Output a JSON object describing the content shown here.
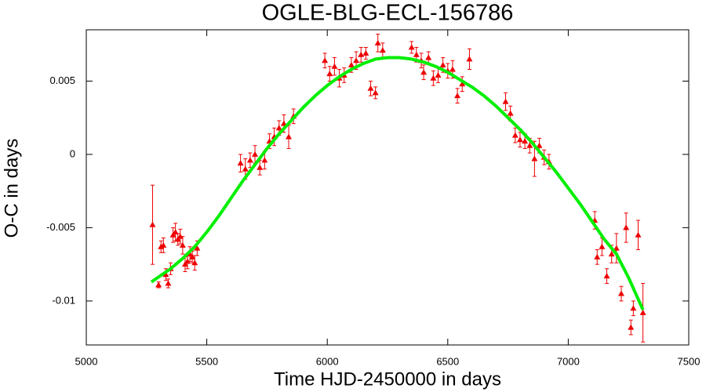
{
  "chart_data": {
    "type": "scatter",
    "title": "OGLE-BLG-ECL-156786",
    "x_label": "Time HJD-2450000 in days",
    "y_label": "O-C in days",
    "xlim": [
      5000,
      7500
    ],
    "ylim": [
      -0.013,
      0.0085
    ],
    "xticks": [
      5000,
      5500,
      6000,
      6500,
      7000,
      7500
    ],
    "yticks": [
      -0.01,
      -0.005,
      0,
      0.005
    ],
    "color": "#ee0000",
    "x": [
      5275,
      5300,
      5310,
      5320,
      5330,
      5340,
      5350,
      5360,
      5370,
      5380,
      5390,
      5400,
      5410,
      5420,
      5430,
      5440,
      5450,
      5460,
      5640,
      5660,
      5680,
      5700,
      5720,
      5740,
      5760,
      5780,
      5800,
      5820,
      5840,
      5860,
      5990,
      6010,
      6030,
      6050,
      6070,
      6100,
      6120,
      6140,
      6160,
      6180,
      6200,
      6210,
      6230,
      6350,
      6370,
      6390,
      6400,
      6420,
      6440,
      6460,
      6480,
      6500,
      6520,
      6540,
      6560,
      6590,
      6740,
      6760,
      6780,
      6800,
      6820,
      6840,
      6860,
      6880,
      6900,
      6920,
      7110,
      7120,
      7140,
      7160,
      7180,
      7200,
      7220,
      7240,
      7260,
      7270,
      7290,
      7310
    ],
    "values": [
      -0.0048,
      -0.0089,
      -0.0063,
      -0.0062,
      -0.0082,
      -0.0088,
      -0.0078,
      -0.0055,
      -0.0053,
      -0.0058,
      -0.0056,
      -0.0062,
      -0.0075,
      -0.0073,
      -0.0068,
      -0.007,
      -0.0074,
      -0.0064,
      -0.0006,
      -0.001,
      -0.0004,
      0.0,
      -0.0009,
      -0.0004,
      0.0009,
      0.0012,
      0.0018,
      0.0021,
      0.0012,
      0.0026,
      0.0064,
      0.0055,
      0.006,
      0.0052,
      0.0054,
      0.0061,
      0.0064,
      0.0068,
      0.0069,
      0.0045,
      0.0042,
      0.0076,
      0.0071,
      0.0073,
      0.0068,
      0.0064,
      0.0056,
      0.0066,
      0.0052,
      0.0054,
      0.0061,
      0.0057,
      0.0058,
      0.004,
      0.0048,
      0.0065,
      0.0036,
      0.0028,
      0.0013,
      0.001,
      0.0009,
      0.0006,
      -0.0003,
      0.0006,
      -0.0002,
      -0.0005,
      -0.0045,
      -0.007,
      -0.0063,
      -0.0083,
      -0.0068,
      -0.0064,
      -0.0095,
      -0.005,
      -0.0118,
      -0.0105,
      -0.0055,
      -0.0108
    ],
    "errors": [
      0.0027,
      0.0002,
      0.0004,
      0.0005,
      0.0004,
      0.0003,
      0.0004,
      0.0005,
      0.0006,
      0.0004,
      0.0005,
      0.0006,
      0.0005,
      0.0005,
      0.0005,
      0.0004,
      0.0005,
      0.0005,
      0.0006,
      0.0007,
      0.0005,
      0.0006,
      0.0005,
      0.0006,
      0.0005,
      0.0006,
      0.0005,
      0.0006,
      0.0008,
      0.0005,
      0.0005,
      0.0005,
      0.0006,
      0.0006,
      0.0005,
      0.0005,
      0.0006,
      0.0005,
      0.0004,
      0.0005,
      0.0004,
      0.0006,
      0.0005,
      0.0004,
      0.0005,
      0.0005,
      0.0005,
      0.0004,
      0.0005,
      0.0005,
      0.0005,
      0.0005,
      0.0006,
      0.0005,
      0.0005,
      0.0007,
      0.0006,
      0.0005,
      0.0005,
      0.0005,
      0.0005,
      0.0005,
      0.0012,
      0.0005,
      0.0005,
      0.0005,
      0.0006,
      0.0005,
      0.0006,
      0.0005,
      0.0006,
      0.001,
      0.0005,
      0.001,
      0.0005,
      0.0005,
      0.001,
      0.002
    ],
    "fit_color": "#00ee00",
    "fit_x": [
      5270,
      5350,
      5400,
      5450,
      5500,
      5550,
      5600,
      5650,
      5700,
      5750,
      5800,
      5850,
      5900,
      5950,
      6000,
      6050,
      6100,
      6150,
      6200,
      6250,
      6300,
      6350,
      6400,
      6450,
      6500,
      6550,
      6600,
      6650,
      6700,
      6750,
      6800,
      6850,
      6900,
      6950,
      7000,
      7050,
      7100,
      7150,
      7200,
      7250,
      7310
    ],
    "fit_values": [
      -0.0087,
      -0.0078,
      -0.0071,
      -0.0063,
      -0.0053,
      -0.0042,
      -0.003,
      -0.0018,
      -0.0007,
      0.0004,
      0.0014,
      0.0023,
      0.0032,
      0.004,
      0.0047,
      0.0053,
      0.0058,
      0.0062,
      0.0065,
      0.0066,
      0.0066,
      0.0065,
      0.0063,
      0.006,
      0.0056,
      0.0051,
      0.0046,
      0.004,
      0.0033,
      0.0025,
      0.0017,
      0.0008,
      -0.0002,
      -0.0012,
      -0.0023,
      -0.0034,
      -0.0046,
      -0.0058,
      -0.0068,
      -0.0084,
      -0.0106
    ]
  }
}
